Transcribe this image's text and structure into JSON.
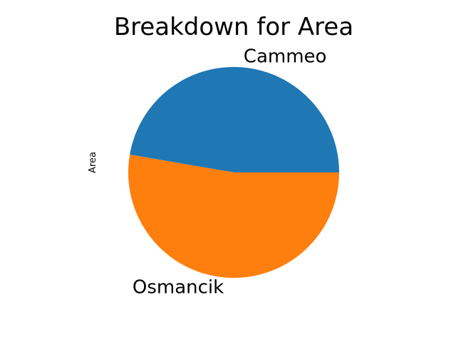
{
  "chart_data": {
    "type": "pie",
    "title": "Breakdown for Area",
    "ylabel": "Area",
    "xlabel": "",
    "categories": [
      "Cammeo",
      "Osmancik"
    ],
    "values": [
      47.3,
      52.7
    ],
    "colors": [
      "#1f77b4",
      "#ff7f0e"
    ],
    "start_angle_deg": 0,
    "direction": "counterclockwise",
    "legend": false
  }
}
